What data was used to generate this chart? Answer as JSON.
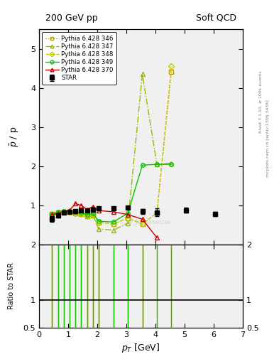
{
  "title_left": "200 GeV pp",
  "title_right": "Soft QCD",
  "ylabel_main": "$\\bar{p}$ / p",
  "ylabel_ratio": "Ratio to STAR",
  "xlabel": "$p_T$ [GeV]",
  "right_label_top": "Rivet 3.1.10, ≥ 100k events",
  "right_label_bot": "mcplots.cern.ch [arXiv:1306.3436]",
  "ylim_main": [
    0.0,
    5.5
  ],
  "ylim_ratio": [
    0.5,
    2.0
  ],
  "xlim": [
    0.0,
    7.0
  ],
  "STAR_x": [
    0.45,
    0.65,
    0.85,
    1.05,
    1.25,
    1.45,
    1.65,
    1.85,
    2.05,
    2.55,
    3.05,
    3.55,
    4.05,
    5.05,
    6.05
  ],
  "STAR_y": [
    0.65,
    0.75,
    0.82,
    0.84,
    0.85,
    0.87,
    0.87,
    0.9,
    0.92,
    0.93,
    0.95,
    0.85,
    0.82,
    0.88,
    0.78
  ],
  "STAR_yerr": [
    0.07,
    0.05,
    0.04,
    0.04,
    0.04,
    0.04,
    0.04,
    0.04,
    0.04,
    0.04,
    0.04,
    0.06,
    0.1,
    0.06,
    0.05
  ],
  "P346_x": [
    0.45,
    0.65,
    0.85,
    1.05,
    1.25,
    1.45,
    1.65,
    1.85,
    2.05,
    2.55,
    3.05,
    3.55,
    4.05,
    4.55
  ],
  "P346_y": [
    0.79,
    0.82,
    0.84,
    0.83,
    0.8,
    0.79,
    0.73,
    0.76,
    0.57,
    0.53,
    0.68,
    0.53,
    0.81,
    4.42
  ],
  "P346_color": "#b8960a",
  "P346_linestyle": "dotted",
  "P346_marker": "s",
  "P347_x": [
    0.45,
    0.65,
    0.85,
    1.05,
    1.25,
    1.45,
    1.65,
    1.85,
    2.05,
    2.55,
    3.05,
    3.55,
    4.05,
    4.55
  ],
  "P347_y": [
    0.79,
    0.83,
    0.85,
    0.83,
    0.81,
    0.8,
    0.74,
    0.75,
    0.4,
    0.37,
    0.55,
    4.35,
    2.05,
    2.08
  ],
  "P347_color": "#9ab800",
  "P347_linestyle": "dashdot",
  "P347_marker": "^",
  "P348_x": [
    0.45,
    0.65,
    0.85,
    1.05,
    1.25,
    1.45,
    1.65,
    1.85,
    2.05,
    2.55,
    3.05,
    3.55,
    4.05,
    4.55
  ],
  "P348_y": [
    0.79,
    0.82,
    0.84,
    0.83,
    0.8,
    0.79,
    0.73,
    0.76,
    0.57,
    0.53,
    0.68,
    0.53,
    0.81,
    4.55
  ],
  "P348_color": "#c8c800",
  "P348_linestyle": "dashed",
  "P348_marker": "D",
  "P349_x": [
    0.45,
    0.65,
    0.85,
    1.05,
    1.25,
    1.45,
    1.65,
    1.85,
    2.05,
    2.55,
    3.05,
    3.55,
    4.05,
    4.55
  ],
  "P349_y": [
    0.79,
    0.83,
    0.85,
    0.84,
    0.83,
    0.82,
    0.77,
    0.8,
    0.6,
    0.58,
    0.8,
    2.03,
    2.05,
    2.05
  ],
  "P349_color": "#00c800",
  "P349_linestyle": "solid",
  "P349_marker": "o",
  "P370_x": [
    0.45,
    0.65,
    0.85,
    1.05,
    1.25,
    1.45,
    1.65,
    1.85,
    2.05,
    2.55,
    3.05,
    3.55,
    4.05
  ],
  "P370_y": [
    0.76,
    0.8,
    0.84,
    0.88,
    1.05,
    1.0,
    0.9,
    0.97,
    0.87,
    0.84,
    0.77,
    0.65,
    0.18
  ],
  "P370_color": "#c80000",
  "P370_linestyle": "solid",
  "P370_marker": "^",
  "ratio_346_x": [
    0.45,
    0.65,
    0.85,
    1.05,
    1.25,
    1.45,
    1.65,
    1.85,
    2.05,
    2.55,
    3.05,
    3.55,
    4.55
  ],
  "ratio_347_x": [
    0.45,
    0.65,
    0.85,
    1.05,
    1.25,
    1.45,
    1.65,
    1.85,
    2.05,
    2.55,
    3.05,
    3.55,
    4.05
  ],
  "ratio_348_x": [
    0.45,
    0.65,
    0.85,
    1.05,
    1.25,
    1.45,
    1.65,
    1.85,
    2.05,
    2.55,
    3.05,
    3.55,
    4.55
  ],
  "ratio_349_x": [
    0.45,
    0.65,
    0.85,
    1.05,
    1.25,
    1.45,
    1.65,
    1.85,
    2.05,
    2.55,
    3.05,
    3.55,
    4.05,
    4.55
  ]
}
